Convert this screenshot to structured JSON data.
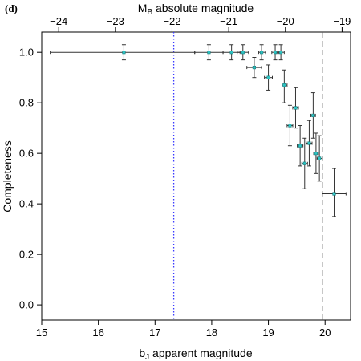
{
  "panel_label": "(d)",
  "chart_data": {
    "type": "scatter",
    "xlabel": "bJ apparent magnitude",
    "xlabel_parts": {
      "main": "b",
      "sub": "J",
      "rest": " apparent magnitude"
    },
    "ylabel": "Completeness",
    "top_axis_label": "MB absolute magnitude",
    "top_axis_label_parts": {
      "main": "M",
      "sub": "B",
      "rest": " absolute magnitude"
    },
    "xlim": [
      15.0,
      20.45
    ],
    "ylim": [
      -0.06,
      1.08
    ],
    "x_ticks": [
      15,
      16,
      17,
      18,
      19,
      20
    ],
    "x_tick_labels": [
      "15",
      "16",
      "17",
      "18",
      "19",
      "20"
    ],
    "y_ticks": [
      0.0,
      0.2,
      0.4,
      0.6,
      0.8,
      1.0
    ],
    "y_tick_labels": [
      "0.0",
      "0.2",
      "0.4",
      "0.6",
      "0.8",
      "1.0"
    ],
    "top_ticks_abs": [
      -24,
      -23,
      -22,
      -21,
      -20,
      -19
    ],
    "top_tick_labels": [
      "−24",
      "−23",
      "−22",
      "−21",
      "−20",
      "−19"
    ],
    "top_axis_mapping": {
      "abs_at_x15": -24.3,
      "abs_per_app": 1.0
    },
    "vlines": [
      {
        "x": 17.33,
        "style": "dotted",
        "color": "#3a3aff"
      },
      {
        "x": 19.95,
        "style": "dashed",
        "color": "#555555"
      }
    ],
    "points": [
      {
        "x": 16.45,
        "y": 1.0,
        "xlo": 15.15,
        "xhi": 17.7,
        "ylo": 0.97,
        "yhi": 1.03
      },
      {
        "x": 17.95,
        "y": 1.0,
        "xlo": 17.7,
        "xhi": 18.2,
        "ylo": 0.97,
        "yhi": 1.03
      },
      {
        "x": 18.35,
        "y": 1.0,
        "xlo": 18.2,
        "xhi": 18.5,
        "ylo": 0.97,
        "yhi": 1.03
      },
      {
        "x": 18.55,
        "y": 1.0,
        "xlo": 18.45,
        "xhi": 18.65,
        "ylo": 0.97,
        "yhi": 1.03
      },
      {
        "x": 18.75,
        "y": 0.94,
        "xlo": 18.62,
        "xhi": 18.88,
        "ylo": 0.9,
        "yhi": 0.98
      },
      {
        "x": 18.88,
        "y": 1.0,
        "xlo": 18.83,
        "xhi": 18.95,
        "ylo": 0.97,
        "yhi": 1.03
      },
      {
        "x": 19.0,
        "y": 0.9,
        "xlo": 18.93,
        "xhi": 19.07,
        "ylo": 0.85,
        "yhi": 0.95
      },
      {
        "x": 19.12,
        "y": 1.0,
        "xlo": 19.06,
        "xhi": 19.18,
        "ylo": 0.97,
        "yhi": 1.03
      },
      {
        "x": 19.22,
        "y": 1.0,
        "xlo": 19.16,
        "xhi": 19.28,
        "ylo": 0.97,
        "yhi": 1.03
      },
      {
        "x": 19.28,
        "y": 0.87,
        "xlo": 19.24,
        "xhi": 19.33,
        "ylo": 0.8,
        "yhi": 0.93
      },
      {
        "x": 19.38,
        "y": 0.71,
        "xlo": 19.33,
        "xhi": 19.43,
        "ylo": 0.63,
        "yhi": 0.79
      },
      {
        "x": 19.48,
        "y": 0.78,
        "xlo": 19.43,
        "xhi": 19.53,
        "ylo": 0.7,
        "yhi": 0.86
      },
      {
        "x": 19.56,
        "y": 0.63,
        "xlo": 19.51,
        "xhi": 19.61,
        "ylo": 0.55,
        "yhi": 0.71
      },
      {
        "x": 19.64,
        "y": 0.56,
        "xlo": 19.59,
        "xhi": 19.69,
        "ylo": 0.46,
        "yhi": 0.66
      },
      {
        "x": 19.72,
        "y": 0.64,
        "xlo": 19.67,
        "xhi": 19.77,
        "ylo": 0.55,
        "yhi": 0.73
      },
      {
        "x": 19.79,
        "y": 0.75,
        "xlo": 19.75,
        "xhi": 19.83,
        "ylo": 0.66,
        "yhi": 0.84
      },
      {
        "x": 19.84,
        "y": 0.6,
        "xlo": 19.8,
        "xhi": 19.88,
        "ylo": 0.52,
        "yhi": 0.68
      },
      {
        "x": 19.9,
        "y": 0.58,
        "xlo": 19.86,
        "xhi": 19.95,
        "ylo": 0.49,
        "yhi": 0.67
      },
      {
        "x": 20.16,
        "y": 0.44,
        "xlo": 19.95,
        "xhi": 20.37,
        "ylo": 0.35,
        "yhi": 0.54
      }
    ]
  }
}
